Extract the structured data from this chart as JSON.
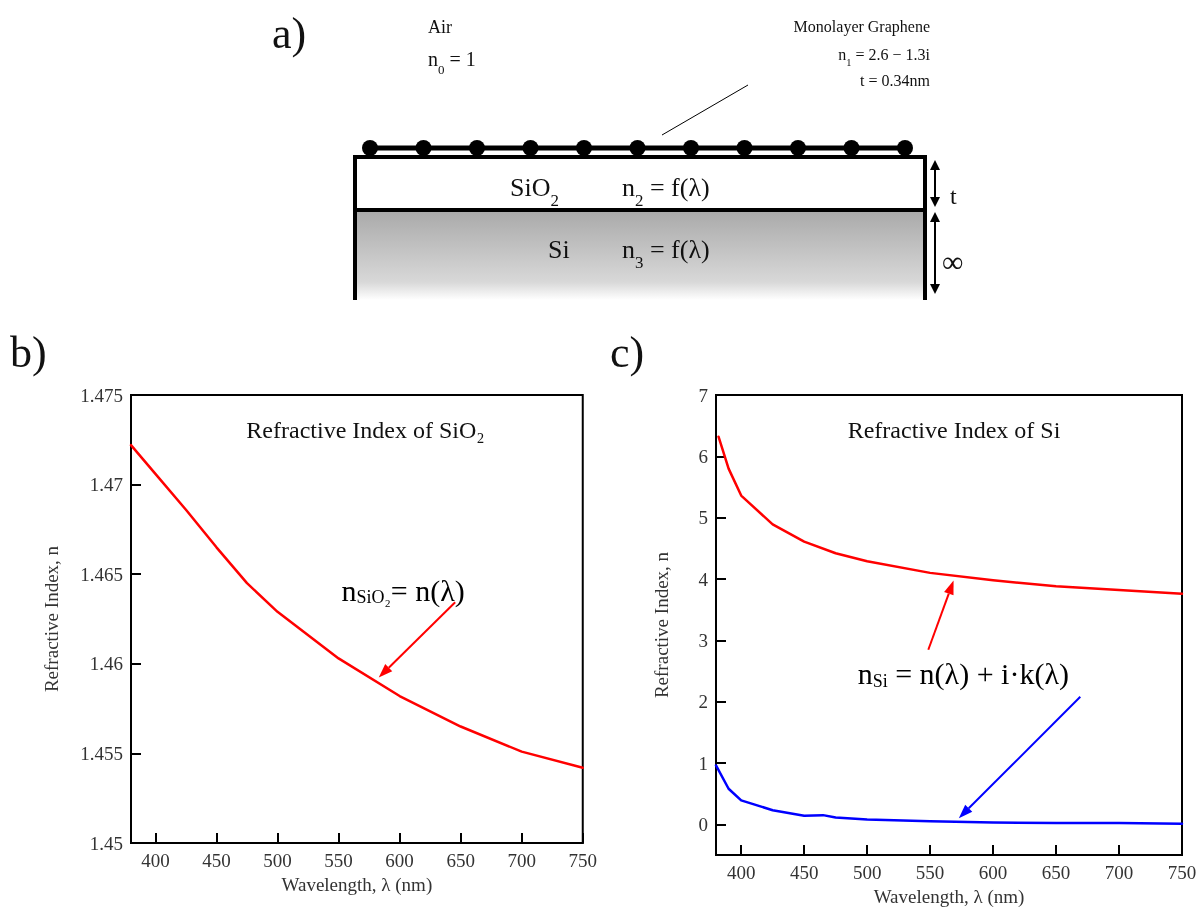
{
  "chart_data": [
    {
      "type": "other",
      "annotations": [
        "a)",
        "Air",
        "n$_{0}$ = 1",
        "Monolayer Graphene",
        "n$_{1}$ = 2.6 − 1.3i",
        "t = 0.34nm",
        "SiO$_{2}$",
        "n$_{2}$ = f(λ)",
        "Si",
        "n$_{3}$ = f(λ)",
        "t",
        "∞"
      ]
    },
    {
      "type": "line",
      "title": "Refractive Index of SiO₂",
      "xlabel": "Wavelength, λ (nm)",
      "ylabel": "Refractive Index, n",
      "xlim": [
        380,
        750
      ],
      "xticks": [
        400,
        450,
        500,
        550,
        600,
        650,
        700,
        750
      ],
      "ylim": [
        1.45,
        1.475
      ],
      "yticks": [
        1.45,
        1.455,
        1.46,
        1.465,
        1.47,
        1.475
      ],
      "marker": "none",
      "annotations": [
        "b)",
        {
          "text": "n$_{SiO₂}$= n(λ)",
          "x": 580,
          "y": 1.4588
        }
      ],
      "series": [
        {
          "color": "#ff0000",
          "x": [
            380,
            400,
            425,
            450,
            475,
            500,
            550,
            600,
            650,
            700,
            750
          ],
          "values": [
            1.4722,
            1.4706,
            1.4686,
            1.4665,
            1.4645,
            1.4629,
            1.4603,
            1.4582,
            1.4565,
            1.4551,
            1.4542
          ]
        }
      ]
    },
    {
      "type": "line",
      "title": "Refractive Index of Si",
      "xlabel": "Wavelength, λ (nm)",
      "ylabel": "Refractive Index, n",
      "xlim": [
        380,
        750
      ],
      "xticks": [
        400,
        450,
        500,
        550,
        600,
        650,
        700,
        750
      ],
      "ylim": [
        -0.5,
        7
      ],
      "yticks": [
        0,
        1,
        2,
        3,
        4,
        5,
        6,
        7
      ],
      "marker": "none",
      "annotations": [
        "c)",
        {
          "text": "n$_{Si}$ = n(λ) + i·k(λ)",
          "x": 570,
          "y": 4.02
        }
      ],
      "series": [
        {
          "color": "#ff0000",
          "x": [
            382,
            390,
            400,
            425,
            450,
            475,
            500,
            550,
            600,
            650,
            700,
            750
          ],
          "values": [
            6.32,
            5.8,
            5.36,
            4.89,
            4.61,
            4.42,
            4.29,
            4.1,
            3.98,
            3.88,
            3.82,
            3.76
          ]
        },
        {
          "color": "#0000ff",
          "x": [
            380,
            390,
            400,
            425,
            450,
            465,
            475,
            500,
            550,
            600,
            650,
            700,
            750
          ],
          "values": [
            0.96,
            0.58,
            0.39,
            0.23,
            0.14,
            0.15,
            0.11,
            0.08,
            0.05,
            0.03,
            0.02,
            0.02,
            0.01
          ]
        }
      ]
    }
  ]
}
